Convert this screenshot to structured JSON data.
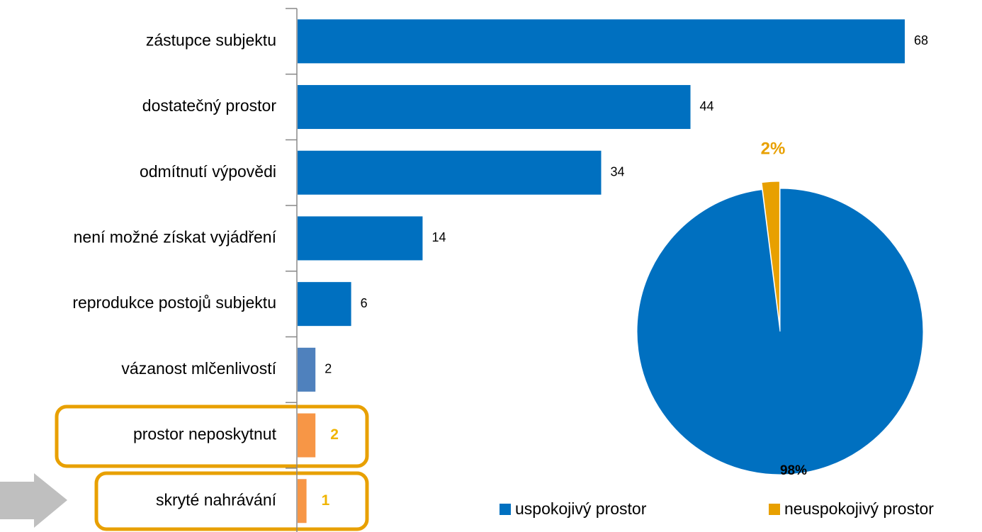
{
  "chart_data": [
    {
      "type": "barh",
      "categories": [
        "zástupce subjektu",
        "dostatečný prostor",
        "odmítnutí výpovědi",
        "není možné získat vyjádření",
        "reprodukce postojů subjektu",
        "vázanost mlčenlivostí",
        "prostor neposkytnut",
        "skryté nahrávání"
      ],
      "values": [
        68,
        44,
        34,
        14,
        6,
        2,
        2,
        1
      ],
      "colors": [
        "#0070c0",
        "#0070c0",
        "#0070c0",
        "#0070c0",
        "#0070c0",
        "#4f81bd",
        "#f79646",
        "#f79646"
      ],
      "value_label_colors": [
        "#000000",
        "#000000",
        "#000000",
        "#000000",
        "#000000",
        "#000000",
        "#f0b400",
        "#f0b400"
      ]
    },
    {
      "type": "pie",
      "categories": [
        "uspokojivý prostor",
        "neuspokojivý prostor"
      ],
      "values": [
        98,
        2
      ],
      "value_labels": [
        "98%",
        "2%"
      ],
      "colors": [
        "#0070c0",
        "#e8a000"
      ],
      "label_colors": [
        "#000000",
        "#e8a000"
      ]
    }
  ]
}
